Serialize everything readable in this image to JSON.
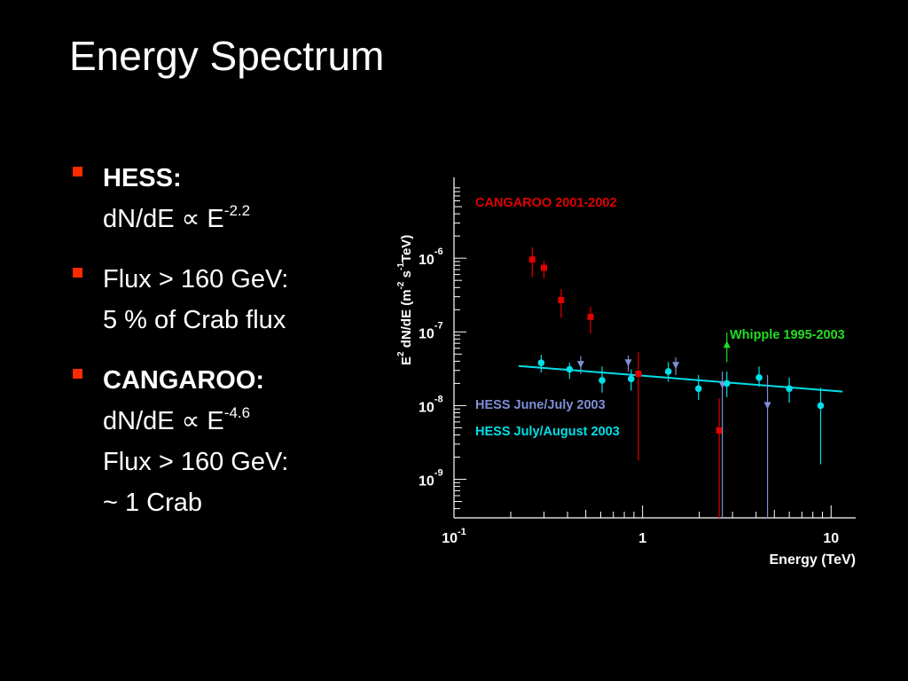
{
  "slide": {
    "title": "Energy Spectrum"
  },
  "bullets": [
    {
      "head": "HESS:",
      "bold": true,
      "lines": [
        {
          "pre": "dN/dE ∝ E",
          "sup": "-2.2"
        }
      ]
    },
    {
      "head": "Flux > 160 GeV:",
      "bold": false,
      "lines": [
        {
          "pre": "5 % of Crab flux",
          "sup": ""
        }
      ]
    },
    {
      "head": "CANGAROO:",
      "bold": true,
      "lines": [
        {
          "pre": "dN/dE ∝ E",
          "sup": "-4.6"
        },
        {
          "pre": "Flux > 160 GeV:",
          "sup": ""
        },
        {
          "pre": "~ 1 Crab",
          "sup": ""
        }
      ]
    }
  ],
  "colors": {
    "bullet": "#ff2b00",
    "cangaroo": "#e00000",
    "whipple": "#22dd22",
    "hess_june": "#7f8fd8",
    "hess_aug": "#00e0e8",
    "axis": "#ffffff"
  },
  "chart_data": {
    "type": "scatter",
    "xscale": "log",
    "yscale": "log",
    "xlim": [
      0.1,
      13.5
    ],
    "ylim": [
      3e-10,
      1.25e-05
    ],
    "xlabel": "Energy (TeV)",
    "ylabel": {
      "base": "E",
      "sup1": "2",
      "mid": " dN/dE  (m",
      "sup2": "-2",
      "mid2": " s",
      "sup3": "-1",
      "end": "TeV)"
    },
    "x_ticks": [
      {
        "v": 0.1,
        "base": "10",
        "sup": "-1"
      },
      {
        "v": 1,
        "base": "1",
        "sup": ""
      },
      {
        "v": 10,
        "base": "10",
        "sup": ""
      }
    ],
    "y_ticks": [
      {
        "v": 1e-06,
        "base": "10",
        "sup": "-6"
      },
      {
        "v": 1e-07,
        "base": "10",
        "sup": "-7"
      },
      {
        "v": 1e-08,
        "base": "10",
        "sup": "-8"
      },
      {
        "v": 1e-09,
        "base": "10",
        "sup": "-9"
      }
    ],
    "series": [
      {
        "name": "CANGAROO 2001-2002",
        "marker": "square",
        "color": "#e00000",
        "points": [
          {
            "x": 0.26,
            "y": 9.6e-07,
            "lo": 5.5e-07,
            "hi": 1.4e-06
          },
          {
            "x": 0.3,
            "y": 7.4e-07,
            "lo": 5.3e-07,
            "hi": 9.2e-07
          },
          {
            "x": 0.37,
            "y": 2.7e-07,
            "lo": 1.55e-07,
            "hi": 3.8e-07
          },
          {
            "x": 0.53,
            "y": 1.6e-07,
            "lo": 9.5e-08,
            "hi": 2.2e-07
          },
          {
            "x": 0.95,
            "y": 2.7e-08,
            "lo": 1.8e-09,
            "hi": 5.3e-08
          },
          {
            "x": 2.55,
            "y": 4.6e-09,
            "lo": 3e-10,
            "hi": 1.25e-08
          }
        ]
      },
      {
        "name": "Whipple 1995-2003",
        "marker": "triangle-up",
        "color": "#22dd22",
        "points": [
          {
            "x": 2.8,
            "y": 6.8e-08,
            "lo": 3.9e-08,
            "hi": 9.8e-08
          }
        ]
      },
      {
        "name": "HESS June/July 2003",
        "marker": "triangle-down",
        "color": "#7f8fd8",
        "points": [
          {
            "x": 0.47,
            "y": 3.6e-08,
            "lo": 2.7e-08,
            "hi": 4.7e-08
          },
          {
            "x": 0.84,
            "y": 3.8e-08,
            "lo": 2.9e-08,
            "hi": 4.8e-08
          },
          {
            "x": 1.5,
            "y": 3.5e-08,
            "lo": 2.6e-08,
            "hi": 4.5e-08
          },
          {
            "x": 2.65,
            "y": 1.9e-08,
            "lo": 3e-10,
            "hi": 2.9e-08
          },
          {
            "x": 4.6,
            "y": 1e-08,
            "lo": 3e-10,
            "hi": 2.6e-08
          }
        ]
      },
      {
        "name": "HESS July/August 2003",
        "marker": "circle",
        "color": "#00e0e8",
        "points": [
          {
            "x": 0.29,
            "y": 3.8e-08,
            "lo": 2.8e-08,
            "hi": 4.9e-08
          },
          {
            "x": 0.41,
            "y": 3.1e-08,
            "lo": 2.3e-08,
            "hi": 3.8e-08
          },
          {
            "x": 0.61,
            "y": 2.2e-08,
            "lo": 1.5e-08,
            "hi": 3.4e-08
          },
          {
            "x": 0.87,
            "y": 2.3e-08,
            "lo": 1.6e-08,
            "hi": 3.1e-08
          },
          {
            "x": 1.37,
            "y": 2.9e-08,
            "lo": 2.1e-08,
            "hi": 3.9e-08
          },
          {
            "x": 1.98,
            "y": 1.7e-08,
            "lo": 1.2e-08,
            "hi": 2.6e-08
          },
          {
            "x": 2.8,
            "y": 2e-08,
            "lo": 1.3e-08,
            "hi": 2.9e-08
          },
          {
            "x": 4.15,
            "y": 2.4e-08,
            "lo": 1.8e-08,
            "hi": 3.4e-08
          },
          {
            "x": 6.0,
            "y": 1.7e-08,
            "lo": 1.1e-08,
            "hi": 2.4e-08
          },
          {
            "x": 8.8,
            "y": 1e-08,
            "lo": 1.6e-09,
            "hi": 1.75e-08
          }
        ]
      }
    ],
    "fit": {
      "name": "HESS fit",
      "color": "#00e0e8",
      "x": [
        0.22,
        11.5
      ],
      "y": [
        3.45e-08,
        1.55e-08
      ]
    },
    "legend": [
      {
        "text": "CANGAROO 2001-2002",
        "color": "#e00000",
        "pos": "top-left"
      },
      {
        "text": "Whipple 1995-2003",
        "color": "#22dd22",
        "pos": "right"
      },
      {
        "text": "HESS June/July 2003",
        "color": "#7f8fd8",
        "pos": "bottom-left"
      },
      {
        "text": "HESS July/August 2003",
        "color": "#00e0e8",
        "pos": "bottom-left"
      }
    ]
  }
}
